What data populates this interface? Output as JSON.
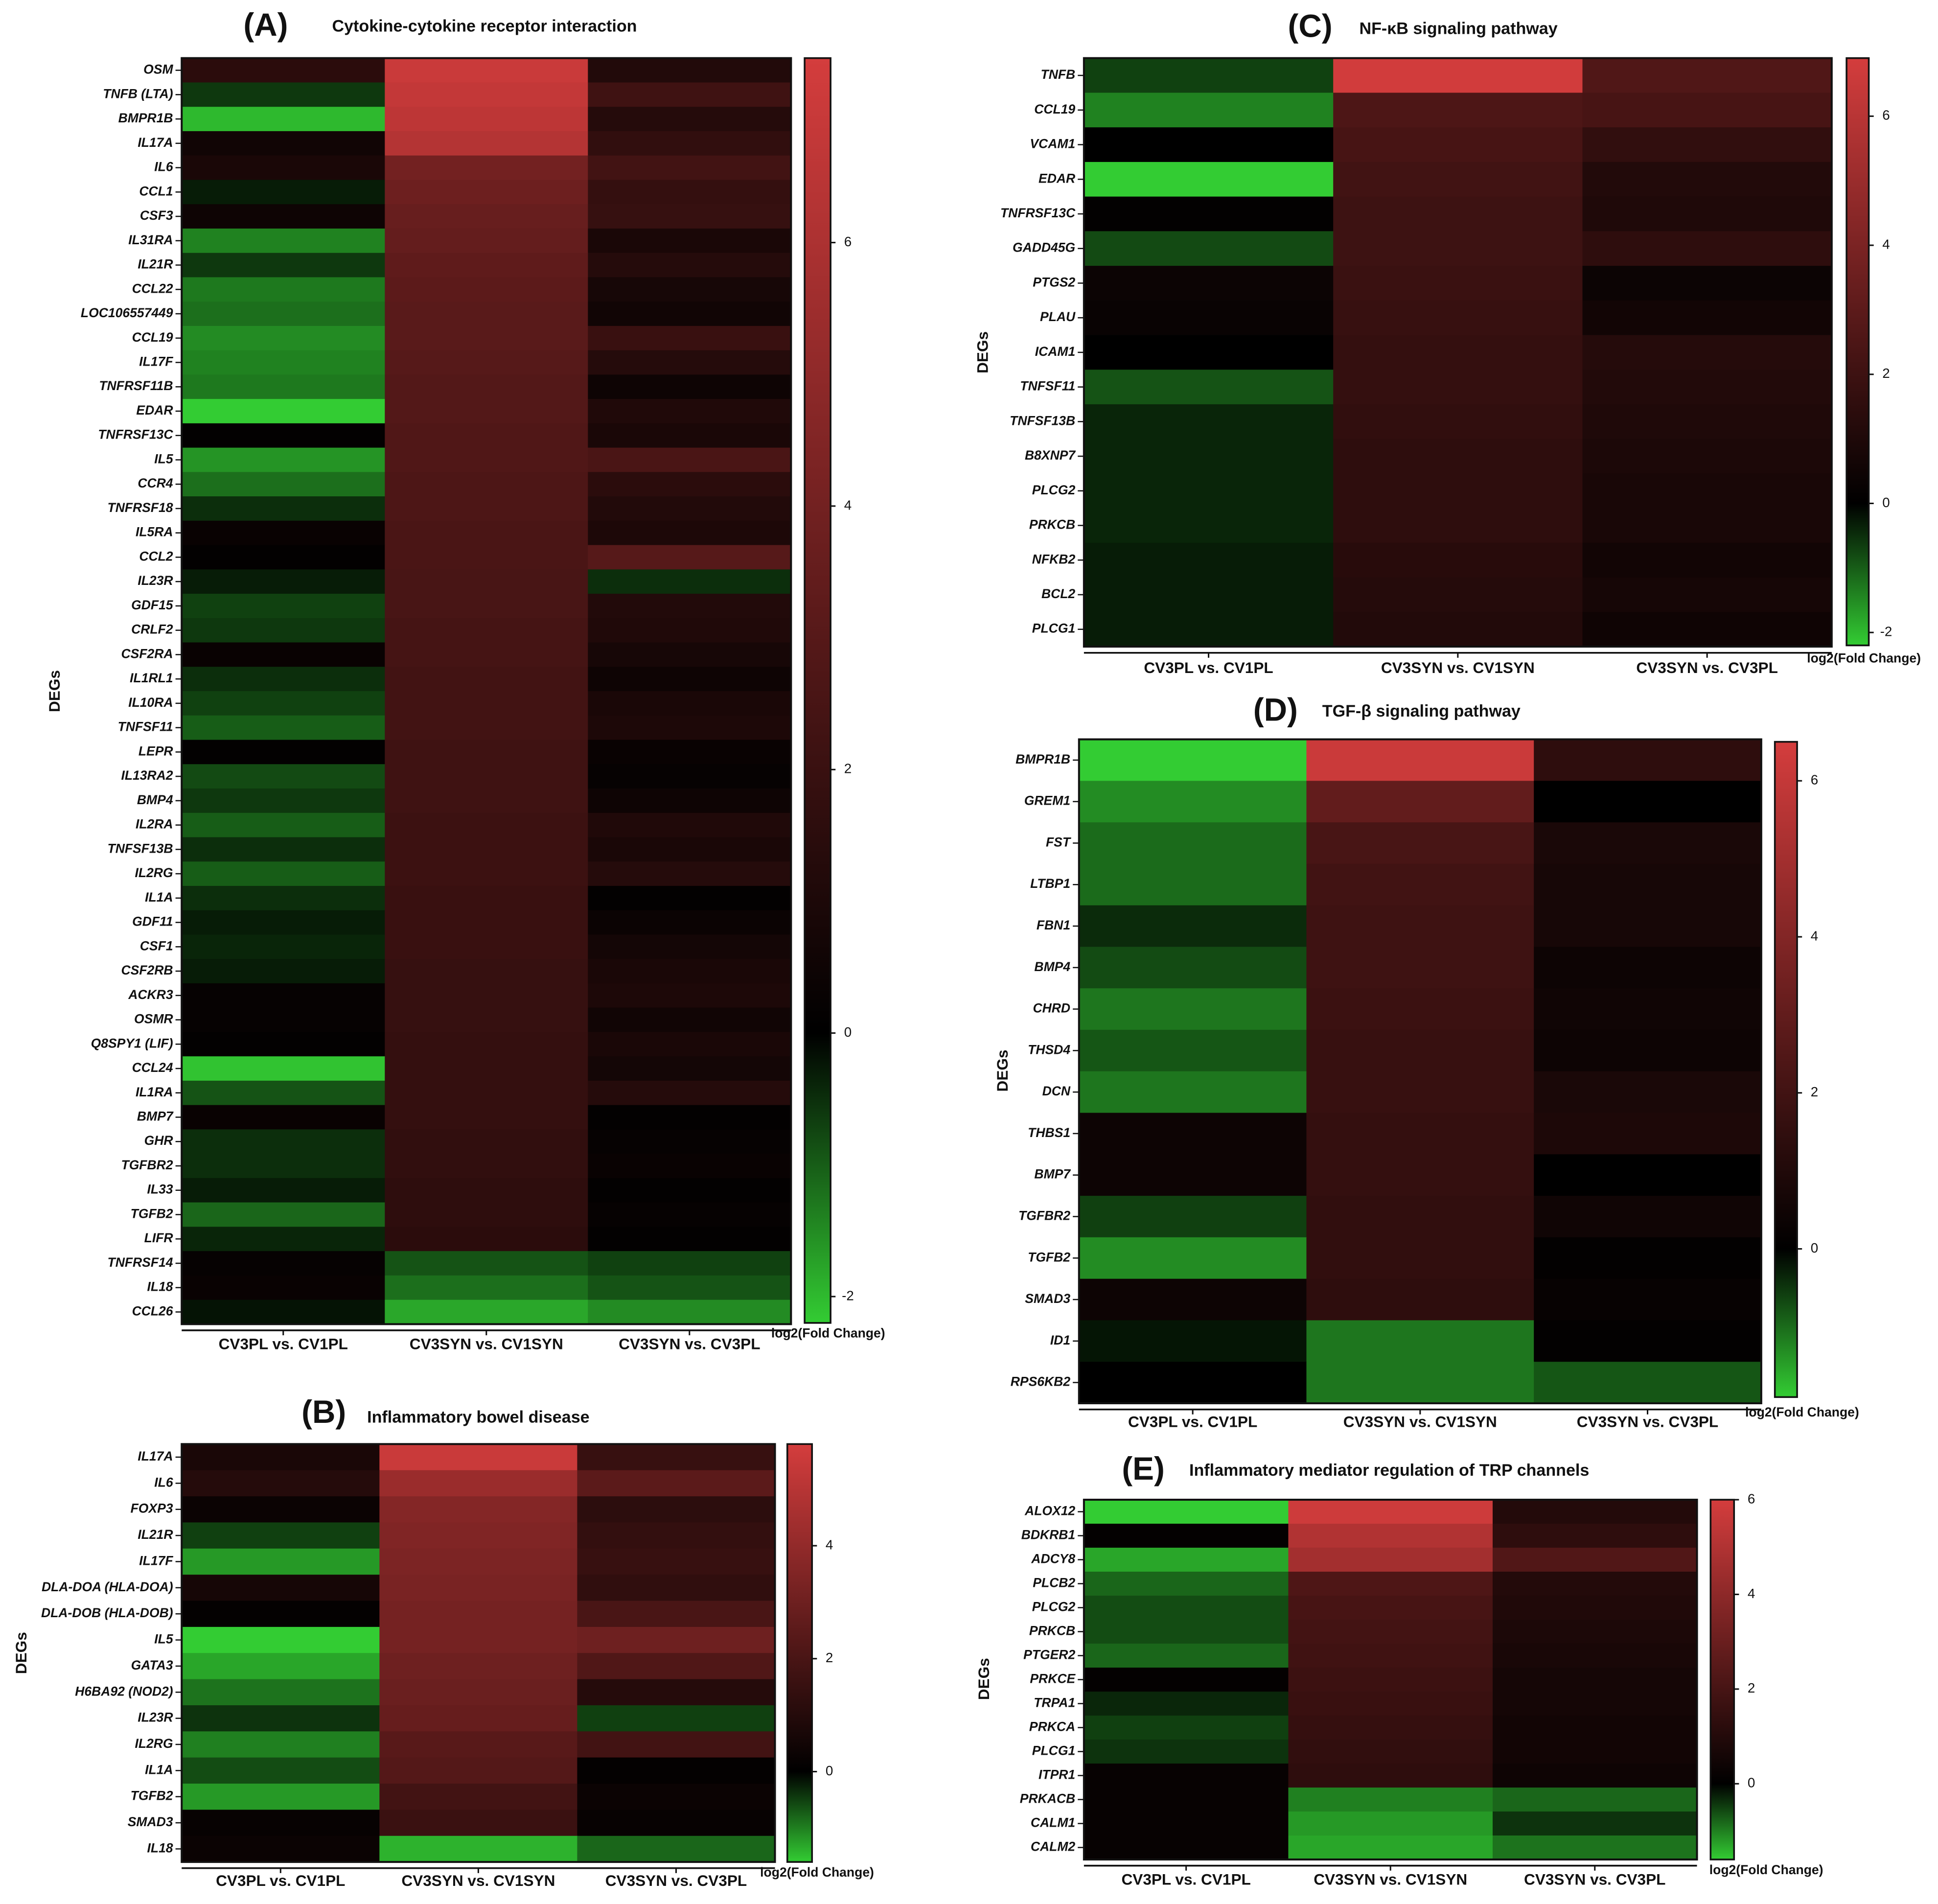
{
  "chart_data": [
    {
      "type": "heatmap",
      "panel": "(A)",
      "title": "Cytokine-cytokine receptor interaction",
      "ylabel": "DEGs",
      "categories": [
        "CV3PL vs. CV1PL",
        "CV3SYN vs. CV1SYN",
        "CV3SYN vs. CV3PL"
      ],
      "rows": [
        "OSM",
        "TNFB (LTA)",
        "BMPR1B",
        "IL17A",
        "IL6",
        "CCL1",
        "CSF3",
        "IL31RA",
        "IL21R",
        "CCL22",
        "LOC106557449",
        "CCL19",
        "IL17F",
        "TNFRSF11B",
        "EDAR",
        "TNFRSF13C",
        "IL5",
        "CCR4",
        "TNFRSF18",
        "IL5RA",
        "CCL2",
        "IL23R",
        "GDF15",
        "CRLF2",
        "CSF2RA",
        "IL1RL1",
        "IL10RA",
        "TNFSF11",
        "LEPR",
        "IL13RA2",
        "BMP4",
        "IL2RA",
        "TNFSF13B",
        "IL2RG",
        "IL1A",
        "GDF11",
        "CSF1",
        "CSF2RB",
        "ACKR3",
        "OSMR",
        "Q8SPY1 (LIF)",
        "CCL24",
        "IL1RA",
        "BMP7",
        "GHR",
        "TGFBR2",
        "IL33",
        "TGFB2",
        "LIFR",
        "TNFRSF14",
        "IL18",
        "CCL26"
      ],
      "values": [
        [
          1.5,
          7.0,
          1.2
        ],
        [
          -0.6,
          6.8,
          2.2
        ],
        [
          -2.0,
          6.6,
          1.3
        ],
        [
          0.6,
          6.3,
          1.7
        ],
        [
          0.9,
          4.0,
          2.3
        ],
        [
          -0.3,
          3.8,
          1.8
        ],
        [
          0.5,
          3.6,
          1.9
        ],
        [
          -1.4,
          3.5,
          0.9
        ],
        [
          -0.6,
          3.3,
          1.3
        ],
        [
          -1.3,
          3.2,
          0.8
        ],
        [
          -1.2,
          3.1,
          0.6
        ],
        [
          -1.5,
          3.1,
          2.0
        ],
        [
          -1.4,
          3.0,
          1.3
        ],
        [
          -1.3,
          2.9,
          0.5
        ],
        [
          -2.2,
          2.9,
          1.1
        ],
        [
          0.1,
          2.8,
          0.9
        ],
        [
          -1.6,
          2.8,
          2.6
        ],
        [
          -1.2,
          2.7,
          1.5
        ],
        [
          -0.5,
          2.7,
          1.2
        ],
        [
          0.3,
          2.6,
          1.0
        ],
        [
          0.1,
          2.6,
          3.0
        ],
        [
          -0.3,
          2.5,
          -0.5
        ],
        [
          -0.7,
          2.5,
          1.2
        ],
        [
          -0.6,
          2.4,
          1.1
        ],
        [
          0.3,
          2.4,
          0.8
        ],
        [
          -0.5,
          2.3,
          0.5
        ],
        [
          -0.7,
          2.3,
          0.9
        ],
        [
          -1.0,
          2.3,
          1.0
        ],
        [
          0.1,
          2.2,
          0.3
        ],
        [
          -0.8,
          2.2,
          0.2
        ],
        [
          -0.6,
          2.2,
          0.5
        ],
        [
          -1.0,
          2.1,
          1.1
        ],
        [
          -0.5,
          2.1,
          0.9
        ],
        [
          -1.0,
          2.1,
          1.3
        ],
        [
          -0.5,
          2.0,
          0.1
        ],
        [
          -0.3,
          2.0,
          0.4
        ],
        [
          -0.4,
          2.0,
          0.7
        ],
        [
          -0.3,
          1.9,
          0.9
        ],
        [
          0.2,
          1.9,
          1.0
        ],
        [
          0.2,
          1.9,
          0.6
        ],
        [
          0.1,
          1.8,
          0.9
        ],
        [
          -2.1,
          1.8,
          0.7
        ],
        [
          -0.9,
          1.8,
          1.3
        ],
        [
          0.3,
          1.8,
          0.1
        ],
        [
          -0.5,
          1.7,
          0.2
        ],
        [
          -0.5,
          1.7,
          0.3
        ],
        [
          -0.3,
          1.6,
          0.1
        ],
        [
          -1.1,
          1.6,
          0.2
        ],
        [
          -0.4,
          1.5,
          0.1
        ],
        [
          0.2,
          -0.9,
          -0.7
        ],
        [
          0.3,
          -1.2,
          -0.9
        ],
        [
          -0.2,
          -1.8,
          -1.5
        ]
      ],
      "zlim": [
        -2.2,
        7.4
      ],
      "zticks": [
        -2,
        0,
        2,
        4,
        6
      ],
      "colorbar_label": "log2(Fold Change)",
      "colors": [
        "#33cc33",
        "#000000",
        "#d43d3d"
      ]
    },
    {
      "type": "heatmap",
      "panel": "(B)",
      "title": "Inflammatory bowel disease",
      "ylabel": "DEGs",
      "categories": [
        "CV3PL vs. CV1PL",
        "CV3SYN vs. CV1SYN",
        "CV3SYN vs. CV3PL"
      ],
      "rows": [
        "IL17A",
        "IL6",
        "FOXP3",
        "IL21R",
        "IL17F",
        "DLA-DOA (HLA-DOA)",
        "DLA-DOB (HLA-DOB)",
        "IL5",
        "GATA3",
        "H6BA92 (NOD2)",
        "IL23R",
        "IL2RG",
        "IL1A",
        "TGFB2",
        "SMAD3",
        "IL18"
      ],
      "values": [
        [
          0.7,
          5.5,
          1.5
        ],
        [
          1.0,
          4.2,
          2.5
        ],
        [
          0.3,
          3.6,
          1.2
        ],
        [
          -0.5,
          3.5,
          1.4
        ],
        [
          -1.2,
          3.4,
          1.5
        ],
        [
          0.6,
          3.3,
          1.3
        ],
        [
          0.1,
          3.2,
          2.0
        ],
        [
          -1.6,
          3.2,
          3.0
        ],
        [
          -1.3,
          3.0,
          2.2
        ],
        [
          -0.9,
          2.9,
          1.0
        ],
        [
          -0.4,
          2.8,
          -0.5
        ],
        [
          -1.0,
          2.4,
          1.8
        ],
        [
          -0.6,
          2.3,
          0.1
        ],
        [
          -1.2,
          1.8,
          0.3
        ],
        [
          0.2,
          1.6,
          0.2
        ],
        [
          0.3,
          -1.4,
          -0.8
        ]
      ],
      "zlim": [
        -1.6,
        5.8
      ],
      "zticks": [
        0,
        2,
        4
      ],
      "colorbar_label": "log2(Fold Change)",
      "colors": [
        "#33cc33",
        "#000000",
        "#d43d3d"
      ]
    },
    {
      "type": "heatmap",
      "panel": "(C)",
      "title": "NF-κB signaling pathway",
      "ylabel": "DEGs",
      "categories": [
        "CV3PL vs. CV1PL",
        "CV3SYN vs. CV1SYN",
        "CV3SYN vs. CV3PL"
      ],
      "rows": [
        "TNFB",
        "CCL19",
        "VCAM1",
        "EDAR",
        "TNFRSF13C",
        "GADD45G",
        "PTGS2",
        "PLAU",
        "ICAM1",
        "TNFSF11",
        "TNFSF13B",
        "B8XNP7",
        "PLCG2",
        "PRKCB",
        "NFKB2",
        "BCL2",
        "PLCG1"
      ],
      "values": [
        [
          -0.7,
          6.8,
          2.6
        ],
        [
          -1.4,
          2.5,
          2.3
        ],
        [
          0.0,
          2.3,
          1.6
        ],
        [
          -2.2,
          2.1,
          1.1
        ],
        [
          0.1,
          2.0,
          1.0
        ],
        [
          -0.8,
          2.0,
          1.5
        ],
        [
          0.4,
          1.9,
          0.4
        ],
        [
          0.3,
          1.8,
          0.6
        ],
        [
          0.0,
          1.7,
          1.2
        ],
        [
          -0.9,
          1.7,
          1.1
        ],
        [
          -0.4,
          1.6,
          1.0
        ],
        [
          -0.4,
          1.5,
          0.9
        ],
        [
          -0.4,
          1.5,
          0.8
        ],
        [
          -0.4,
          1.5,
          0.8
        ],
        [
          -0.3,
          1.3,
          0.6
        ],
        [
          -0.3,
          1.2,
          0.7
        ],
        [
          -0.3,
          1.1,
          0.5
        ]
      ],
      "zlim": [
        -2.2,
        6.9
      ],
      "zticks": [
        -2,
        0,
        2,
        4,
        6
      ],
      "colorbar_label": "log2(Fold Change)",
      "colors": [
        "#33cc33",
        "#000000",
        "#d43d3d"
      ]
    },
    {
      "type": "heatmap",
      "panel": "(D)",
      "title": "TGF-β signaling pathway",
      "ylabel": "DEGs",
      "categories": [
        "CV3PL vs. CV1PL",
        "CV3SYN vs. CV1SYN",
        "CV3SYN vs. CV3PL"
      ],
      "rows": [
        "BMPR1B",
        "GREM1",
        "FST",
        "LTBP1",
        "FBN1",
        "BMP4",
        "CHRD",
        "THSD4",
        "DCN",
        "THBS1",
        "BMP7",
        "TGFBR2",
        "TGFB2",
        "SMAD3",
        "ID1",
        "RPS6KB2"
      ],
      "values": [
        [
          -1.9,
          6.2,
          1.4
        ],
        [
          -1.3,
          3.0,
          0.0
        ],
        [
          -1.0,
          2.2,
          0.8
        ],
        [
          -1.0,
          2.0,
          0.7
        ],
        [
          -0.4,
          1.9,
          0.7
        ],
        [
          -0.7,
          1.9,
          0.4
        ],
        [
          -1.1,
          1.8,
          0.5
        ],
        [
          -0.8,
          1.7,
          0.4
        ],
        [
          -1.1,
          1.7,
          0.8
        ],
        [
          0.4,
          1.6,
          0.9
        ],
        [
          0.4,
          1.6,
          0.0
        ],
        [
          -0.6,
          1.5,
          0.5
        ],
        [
          -1.3,
          1.5,
          0.1
        ],
        [
          0.4,
          1.4,
          0.2
        ],
        [
          -0.2,
          -1.1,
          0.1
        ],
        [
          0.0,
          -1.1,
          -0.8
        ]
      ],
      "zlim": [
        -1.9,
        6.5
      ],
      "zticks": [
        0,
        2,
        4,
        6
      ],
      "colorbar_label": "log2(Fold Change)",
      "colors": [
        "#33cc33",
        "#000000",
        "#d43d3d"
      ]
    },
    {
      "type": "heatmap",
      "panel": "(E)",
      "title": "Inflammatory mediator regulation of TRP channels",
      "ylabel": "DEGs",
      "categories": [
        "CV3PL vs. CV1PL",
        "CV3SYN vs. CV1SYN",
        "CV3SYN vs. CV3PL"
      ],
      "rows": [
        "ALOX12",
        "BDKRB1",
        "ADCY8",
        "PLCB2",
        "PLCG2",
        "PRKCB",
        "PTGER2",
        "PRKCE",
        "TRPA1",
        "PRKCA",
        "PLCG1",
        "ITPR1",
        "PRKACB",
        "CALM1",
        "CALM2"
      ],
      "values": [
        [
          -1.6,
          5.8,
          1.0
        ],
        [
          0.1,
          5.0,
          1.3
        ],
        [
          -1.3,
          4.6,
          2.3
        ],
        [
          -0.8,
          2.2,
          1.0
        ],
        [
          -0.6,
          2.0,
          0.9
        ],
        [
          -0.6,
          1.9,
          0.8
        ],
        [
          -0.8,
          1.8,
          0.7
        ],
        [
          0.1,
          1.7,
          0.6
        ],
        [
          -0.3,
          1.6,
          0.6
        ],
        [
          -0.5,
          1.5,
          0.5
        ],
        [
          -0.4,
          1.4,
          0.5
        ],
        [
          0.2,
          1.3,
          0.4
        ],
        [
          0.2,
          -1.0,
          -0.8
        ],
        [
          0.2,
          -1.2,
          -0.4
        ],
        [
          0.2,
          -1.3,
          -0.9
        ]
      ],
      "zlim": [
        -1.6,
        6.0
      ],
      "zticks": [
        0,
        2,
        4,
        6
      ],
      "colorbar_label": "log2(Fold Change)",
      "colors": [
        "#33cc33",
        "#000000",
        "#d43d3d"
      ]
    }
  ]
}
